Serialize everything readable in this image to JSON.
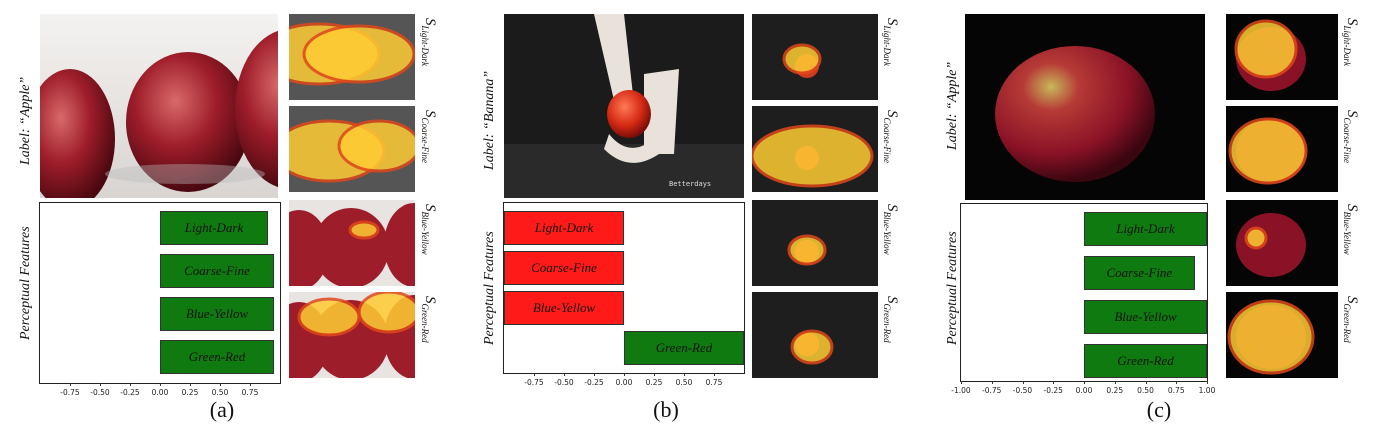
{
  "panels": [
    {
      "caption": "(a)",
      "label": "Label: “Apple”",
      "axis_title": "Perceptual Features",
      "thumb_labels": [
        {
          "s": "S",
          "sub": "Light-Dark"
        },
        {
          "s": "S",
          "sub": "Coarse-Fine"
        },
        {
          "s": "S",
          "sub": "Blue-Yellow"
        },
        {
          "s": "S",
          "sub": "Green-Red"
        }
      ],
      "chart_data": {
        "type": "bar",
        "orientation": "horizontal",
        "categories": [
          "Light-Dark",
          "Coarse-Fine",
          "Blue-Yellow",
          "Green-Red"
        ],
        "values": [
          0.9,
          0.95,
          0.95,
          0.95
        ],
        "colors": [
          "#0f7a0f",
          "#0f7a0f",
          "#0f7a0f",
          "#0f7a0f"
        ],
        "xlim": [
          -1.0,
          1.0
        ],
        "xticks": [
          "-0.75",
          "-0.50",
          "-0.25",
          "0.00",
          "0.25",
          "0.50",
          "0.75"
        ],
        "xtick_values": [
          -0.75,
          -0.5,
          -0.25,
          0.0,
          0.25,
          0.5,
          0.75
        ]
      }
    },
    {
      "caption": "(b)",
      "label": "Label: “Banana”",
      "axis_title": "Perceptual Features",
      "thumb_labels": [
        {
          "s": "S",
          "sub": "Light-Dark"
        },
        {
          "s": "S",
          "sub": "Coarse-Fine"
        },
        {
          "s": "S",
          "sub": "Blue-Yellow"
        },
        {
          "s": "S",
          "sub": "Green-Red"
        }
      ],
      "chart_data": {
        "type": "bar",
        "orientation": "horizontal",
        "categories": [
          "Light-Dark",
          "Coarse-Fine",
          "Blue-Yellow",
          "Green-Red"
        ],
        "values": [
          -1.0,
          -1.0,
          -1.0,
          1.0
        ],
        "colors": [
          "#ff1a1a",
          "#ff1a1a",
          "#ff1a1a",
          "#0f7a0f"
        ],
        "xlim": [
          -1.0,
          1.0
        ],
        "xticks": [
          "-0.75",
          "-0.50",
          "-0.25",
          "0.00",
          "0.25",
          "0.50",
          "0.75"
        ],
        "xtick_values": [
          -0.75,
          -0.5,
          -0.25,
          0.0,
          0.25,
          0.5,
          0.75
        ]
      }
    },
    {
      "caption": "(c)",
      "label": "Label: “Apple”",
      "axis_title": "Perceptual Features",
      "thumb_labels": [
        {
          "s": "S",
          "sub": "Light-Dark"
        },
        {
          "s": "S",
          "sub": "Coarse-Fine"
        },
        {
          "s": "S",
          "sub": "Blue-Yellow"
        },
        {
          "s": "S",
          "sub": "Green-Red"
        }
      ],
      "chart_data": {
        "type": "bar",
        "orientation": "horizontal",
        "categories": [
          "Light-Dark",
          "Coarse-Fine",
          "Blue-Yellow",
          "Green-Red"
        ],
        "values": [
          1.0,
          0.9,
          1.0,
          1.0
        ],
        "colors": [
          "#0f7a0f",
          "#0f7a0f",
          "#0f7a0f",
          "#0f7a0f"
        ],
        "xlim": [
          -1.0,
          1.0
        ],
        "xticks": [
          "-1.00",
          "-0.75",
          "-0.50",
          "-0.25",
          "0.00",
          "0.25",
          "0.50",
          "0.75",
          "1.00"
        ],
        "xtick_values": [
          -1.0,
          -0.75,
          -0.5,
          -0.25,
          0.0,
          0.25,
          0.5,
          0.75,
          1.0
        ]
      }
    }
  ]
}
